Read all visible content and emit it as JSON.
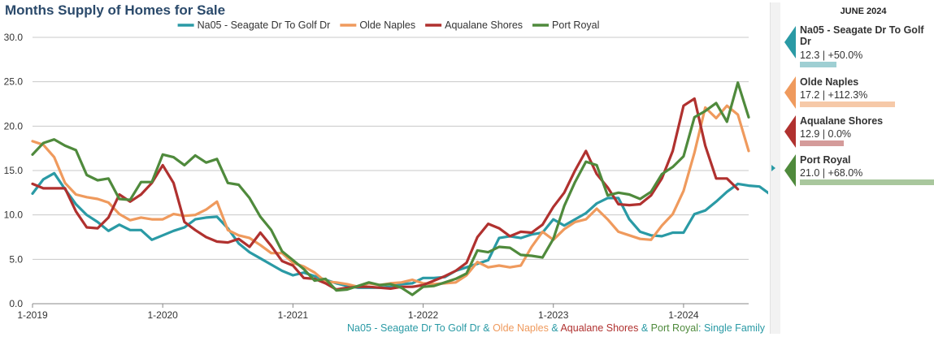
{
  "title": "Months Supply of Homes for Sale",
  "footer": {
    "parts": [
      {
        "text": "Na05 - Seagate Dr To Golf Dr",
        "color": "#2a9aa5"
      },
      {
        "text": " & ",
        "color": "#2a9aa5"
      },
      {
        "text": "Olde Naples",
        "color": "#ef9a5d"
      },
      {
        "text": " & ",
        "color": "#2a9aa5"
      },
      {
        "text": "Aqualane Shores",
        "color": "#b0312f"
      },
      {
        "text": " & ",
        "color": "#2a9aa5"
      },
      {
        "text": "Port Royal",
        "color": "#4f8a3c"
      },
      {
        "text": ": Single Family",
        "color": "#2a9aa5"
      }
    ]
  },
  "panel": {
    "period": "JUNE 2024",
    "entries": [
      {
        "name": "Na05 - Seagate Dr To Golf Dr",
        "value": "12.3 | +50.0%",
        "color": "#2a9aa5",
        "bar_color": "#9fcfd3",
        "bar_fraction": 0.27
      },
      {
        "name": "Olde Naples",
        "value": "17.2 | +112.3%",
        "color": "#ef9a5d",
        "bar_color": "#f6c9a8",
        "bar_fraction": 0.71
      },
      {
        "name": "Aqualane Shores",
        "value": "12.9 | 0.0%",
        "color": "#b0312f",
        "bar_color": "#d49b9a",
        "bar_fraction": 0.33
      },
      {
        "name": "Port Royal",
        "value": "21.0 | +68.0%",
        "color": "#4f8a3c",
        "bar_color": "#a9c79d",
        "bar_fraction": 1.0
      }
    ]
  },
  "chart_data": {
    "type": "line",
    "title": "Months Supply of Homes for Sale",
    "x_start": "2019-01",
    "x_ticks": [
      "1-2019",
      "1-2020",
      "1-2021",
      "1-2022",
      "1-2023",
      "1-2024"
    ],
    "ylim": [
      0,
      30
    ],
    "yticks": [
      "0.0",
      "5.0",
      "10.0",
      "15.0",
      "20.0",
      "25.0",
      "30.0"
    ],
    "grid": true,
    "legend_position": "top",
    "series": [
      {
        "name": "Na05 - Seagate Dr To Golf Dr",
        "color": "#2a9aa5",
        "values": [
          12.4,
          14.0,
          14.7,
          12.9,
          11.2,
          10.0,
          9.2,
          8.2,
          8.9,
          8.3,
          8.3,
          7.2,
          7.7,
          8.2,
          8.6,
          9.5,
          9.7,
          9.8,
          8.5,
          6.8,
          5.8,
          5.1,
          4.4,
          3.7,
          3.2,
          3.5,
          3.1,
          2.7,
          2.3,
          2.0,
          1.8,
          1.8,
          1.8,
          1.9,
          2.2,
          2.3,
          2.9,
          2.9,
          3.0,
          3.7,
          4.1,
          4.5,
          4.9,
          7.4,
          7.6,
          7.4,
          7.8,
          8.0,
          9.5,
          8.8,
          9.5,
          10.2,
          11.3,
          11.9,
          11.9,
          9.5,
          8.1,
          7.7,
          7.6,
          8.0,
          8.0,
          10.1,
          10.5,
          11.5,
          12.6,
          13.5,
          13.3,
          13.2,
          12.3
        ]
      },
      {
        "name": "Olde Naples",
        "color": "#ef9a5d",
        "values": [
          18.3,
          17.9,
          16.5,
          13.6,
          12.3,
          12.0,
          11.8,
          11.4,
          10.1,
          9.4,
          9.7,
          9.5,
          9.5,
          10.1,
          9.9,
          10.0,
          10.6,
          11.5,
          8.3,
          7.7,
          7.4,
          6.6,
          5.7,
          5.7,
          4.6,
          4.2,
          3.5,
          2.5,
          2.4,
          2.2,
          1.9,
          2.3,
          2.1,
          2.3,
          2.4,
          2.7,
          2.3,
          2.2,
          2.3,
          2.4,
          3.2,
          4.7,
          4.1,
          4.3,
          4.1,
          4.3,
          6.4,
          8.1,
          7.2,
          8.4,
          9.2,
          9.5,
          10.7,
          9.5,
          8.1,
          7.7,
          7.3,
          7.2,
          8.8,
          10.1,
          12.7,
          17.0,
          22.1,
          20.9,
          22.3,
          21.3,
          17.2
        ]
      },
      {
        "name": "Aqualane Shores",
        "color": "#b0312f",
        "values": [
          13.5,
          13.0,
          13.0,
          13.0,
          10.4,
          8.6,
          8.5,
          9.7,
          12.3,
          11.5,
          12.3,
          13.6,
          15.6,
          13.6,
          9.2,
          8.3,
          7.5,
          7.0,
          6.9,
          7.3,
          6.4,
          8.0,
          6.5,
          4.8,
          4.3,
          2.9,
          2.8,
          2.3,
          1.6,
          1.8,
          1.9,
          1.9,
          1.8,
          1.7,
          1.9,
          1.9,
          2.1,
          2.6,
          3.1,
          3.7,
          4.6,
          7.5,
          9.0,
          8.5,
          7.6,
          8.1,
          8.0,
          8.9,
          10.9,
          12.5,
          15.0,
          17.2,
          14.6,
          13.1,
          11.2,
          11.1,
          11.2,
          12.2,
          14.1,
          17.2,
          22.3,
          23.1,
          17.8,
          14.1,
          14.1,
          12.9
        ]
      },
      {
        "name": "Port Royal",
        "color": "#4f8a3c",
        "values": [
          16.8,
          18.1,
          18.5,
          17.8,
          17.3,
          14.5,
          13.9,
          14.1,
          11.8,
          11.7,
          13.7,
          13.7,
          16.8,
          16.5,
          15.6,
          16.7,
          15.9,
          16.3,
          13.6,
          13.4,
          11.9,
          9.8,
          8.3,
          5.9,
          4.9,
          3.9,
          2.6,
          2.8,
          1.5,
          1.6,
          2.0,
          2.4,
          2.1,
          2.2,
          1.8,
          1.0,
          1.9,
          2.0,
          2.4,
          2.8,
          3.4,
          6.0,
          5.8,
          6.4,
          6.3,
          5.5,
          5.4,
          5.2,
          7.3,
          11.0,
          13.7,
          16.0,
          15.6,
          12.2,
          12.5,
          12.3,
          11.8,
          12.6,
          14.6,
          15.4,
          16.6,
          21.0,
          21.7,
          22.6,
          20.5,
          24.9,
          21.0
        ]
      }
    ]
  }
}
